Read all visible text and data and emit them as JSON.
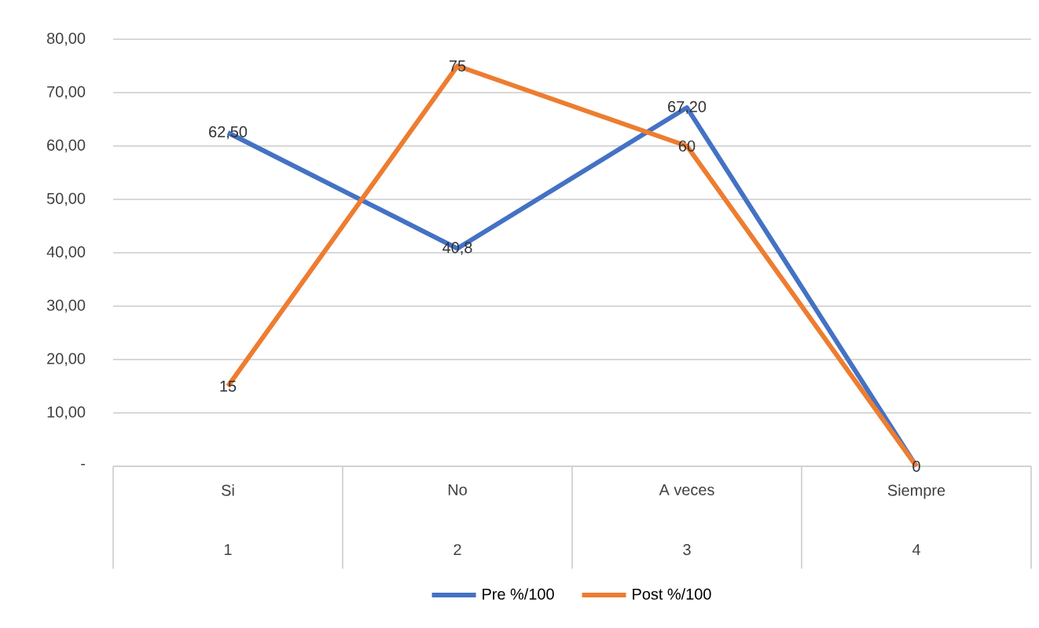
{
  "chart_data": {
    "type": "line",
    "categories": [
      "Si",
      "No",
      "A veces",
      "Siempre"
    ],
    "annotations": [
      "1",
      "2",
      "3",
      "4"
    ],
    "series": [
      {
        "name": "Pre %/100",
        "color": "#4472c4",
        "values": [
          62.5,
          40.8,
          67.2,
          0
        ],
        "value_labels": [
          "62,50",
          "40,8",
          "67,20",
          null
        ]
      },
      {
        "name": "Post %/100",
        "color": "#ed7d31",
        "values": [
          15,
          75,
          60,
          0
        ],
        "value_labels": [
          "15",
          "75",
          "60",
          "0"
        ]
      }
    ],
    "ylim": [
      0,
      80
    ],
    "yticks": [
      {
        "value": 0,
        "label": "-"
      },
      {
        "value": 10,
        "label": "10,00"
      },
      {
        "value": 20,
        "label": "20,00"
      },
      {
        "value": 30,
        "label": "30,00"
      },
      {
        "value": 40,
        "label": "40,00"
      },
      {
        "value": 50,
        "label": "50,00"
      },
      {
        "value": 60,
        "label": "60,00"
      },
      {
        "value": 70,
        "label": "70,00"
      },
      {
        "value": 80,
        "label": "80,00"
      }
    ],
    "grid": "y",
    "legend": "bottom"
  }
}
